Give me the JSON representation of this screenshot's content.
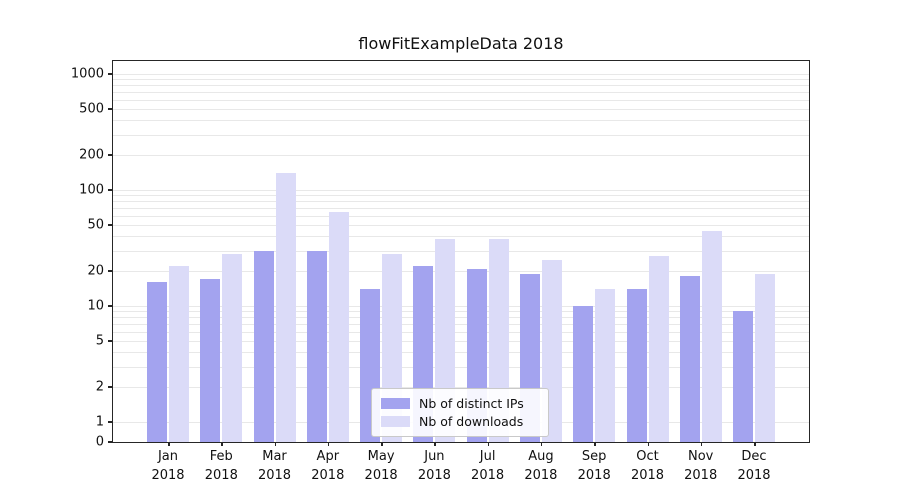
{
  "chart_data": {
    "type": "bar",
    "title": "flowFitExampleData 2018",
    "categories": [
      "Jan 2018",
      "Feb 2018",
      "Mar 2018",
      "Apr 2018",
      "May 2018",
      "Jun 2018",
      "Jul 2018",
      "Aug 2018",
      "Sep 2018",
      "Oct 2018",
      "Nov 2018",
      "Dec 2018"
    ],
    "series": [
      {
        "name": "Nb of distinct IPs",
        "color": "#a3a3ef",
        "values": [
          16,
          17,
          30,
          30,
          14,
          22,
          21,
          19,
          10,
          14,
          18,
          9
        ]
      },
      {
        "name": "Nb of downloads",
        "color": "#dbdbf8",
        "values": [
          22,
          28,
          140,
          65,
          28,
          38,
          38,
          25,
          14,
          27,
          44,
          19
        ]
      }
    ],
    "yscale": "symlog",
    "yticks": [
      0,
      1,
      2,
      5,
      10,
      20,
      50,
      100,
      200,
      500,
      1000
    ],
    "ylim": [
      0,
      1350
    ],
    "xlabel": "",
    "ylabel": "",
    "legend_position": "lower center",
    "grid": "horizontal-minor-log"
  },
  "colors": {
    "grid": "#e8e8e8",
    "axis": "#262626",
    "background": "#ffffff"
  }
}
